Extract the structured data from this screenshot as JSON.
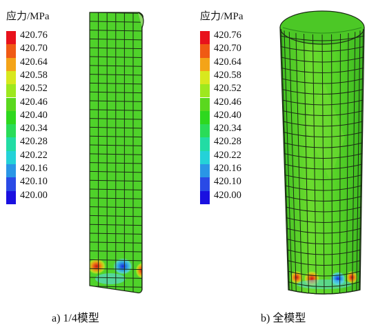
{
  "legend": {
    "title": "应力/MPa",
    "ticks": [
      "420.76",
      "420.70",
      "420.64",
      "420.58",
      "420.52",
      "420.46",
      "420.40",
      "420.34",
      "420.28",
      "420.22",
      "420.16",
      "420.10",
      "420.00"
    ],
    "colors": [
      "#e8121c",
      "#f05a14",
      "#f4a418",
      "#d8e81e",
      "#9ee81e",
      "#5ad81e",
      "#2ed81e",
      "#2adc58",
      "#22dca4",
      "#24d2d8",
      "#2a96e6",
      "#2a4ae6",
      "#1a10e0"
    ]
  },
  "captions": {
    "left": "a) 1/4模型",
    "right": "b) 全模型"
  },
  "colors": {
    "mesh_green": "#4fd22a",
    "mesh_line": "#1a2a14",
    "hotspot_red": "#d9321a",
    "hotspot_blue": "#2a50e6",
    "hotspot_cyan": "#58d8e8"
  }
}
